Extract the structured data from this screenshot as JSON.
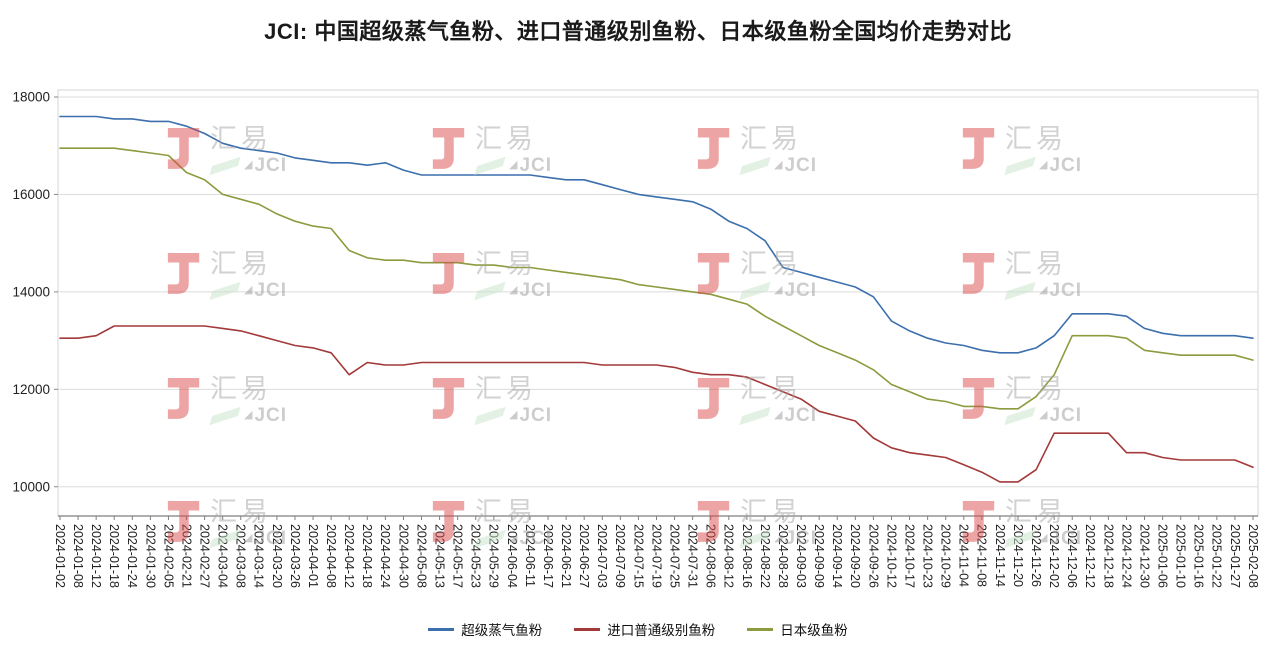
{
  "title": "JCI: 中国超级蒸气鱼粉、进口普通级别鱼粉、日本级鱼粉全国均价走势对比",
  "watermark": {
    "cn": "汇易",
    "en": "JCI",
    "logo_color": "#dd4b4b"
  },
  "chart_data": {
    "type": "line",
    "title": "JCI: 中国超级蒸气鱼粉、进口普通级别鱼粉、日本级鱼粉全国均价走势对比",
    "ylabel": "",
    "xlabel": "",
    "ylim": [
      9400,
      18000
    ],
    "yticks": [
      10000,
      12000,
      14000,
      16000,
      18000
    ],
    "grid": true,
    "legend_position": "bottom",
    "categories": [
      "2024-01-02",
      "2024-01-08",
      "2024-01-12",
      "2024-01-18",
      "2024-01-24",
      "2024-01-30",
      "2024-02-05",
      "2024-02-21",
      "2024-02-27",
      "2024-03-04",
      "2024-03-08",
      "2024-03-14",
      "2024-03-20",
      "2024-03-26",
      "2024-04-01",
      "2024-04-08",
      "2024-04-12",
      "2024-04-18",
      "2024-04-24",
      "2024-04-30",
      "2024-05-08",
      "2024-05-13",
      "2024-05-17",
      "2024-05-23",
      "2024-05-29",
      "2024-06-04",
      "2024-06-11",
      "2024-06-17",
      "2024-06-21",
      "2024-06-27",
      "2024-07-03",
      "2024-07-09",
      "2024-07-15",
      "2024-07-19",
      "2024-07-25",
      "2024-07-31",
      "2024-08-06",
      "2024-08-12",
      "2024-08-16",
      "2024-08-22",
      "2024-08-28",
      "2024-09-03",
      "2024-09-09",
      "2024-09-14",
      "2024-09-20",
      "2024-09-26",
      "2024-10-12",
      "2024-10-17",
      "2024-10-23",
      "2024-10-29",
      "2024-11-04",
      "2024-11-08",
      "2024-11-14",
      "2024-11-20",
      "2024-11-26",
      "2024-12-02",
      "2024-12-06",
      "2024-12-12",
      "2024-12-18",
      "2024-12-24",
      "2024-12-30",
      "2025-01-06",
      "2025-01-10",
      "2025-01-16",
      "2025-01-22",
      "2025-01-27",
      "2025-02-08"
    ],
    "series": [
      {
        "name": "超级蒸气鱼粉",
        "color": "#3c6fad",
        "values": [
          17600,
          17600,
          17600,
          17550,
          17550,
          17500,
          17500,
          17400,
          17250,
          17050,
          16950,
          16900,
          16850,
          16750,
          16700,
          16650,
          16650,
          16600,
          16650,
          16500,
          16400,
          16400,
          16400,
          16400,
          16400,
          16400,
          16400,
          16350,
          16300,
          16300,
          16200,
          16100,
          16000,
          15950,
          15900,
          15850,
          15700,
          15450,
          15300,
          15050,
          14500,
          14400,
          14300,
          14200,
          14100,
          13900,
          13400,
          13200,
          13050,
          12950,
          12900,
          12800,
          12750,
          12750,
          12850,
          13100,
          13550,
          13550,
          13550,
          13500,
          13250,
          13150,
          13100,
          13100,
          13100,
          13100,
          13050
        ]
      },
      {
        "name": "进口普通级别鱼粉",
        "color": "#a33939",
        "values": [
          13050,
          13050,
          13100,
          13300,
          13300,
          13300,
          13300,
          13300,
          13300,
          13250,
          13200,
          13100,
          13000,
          12900,
          12850,
          12750,
          12300,
          12550,
          12500,
          12500,
          12550,
          12550,
          12550,
          12550,
          12550,
          12550,
          12550,
          12550,
          12550,
          12550,
          12500,
          12500,
          12500,
          12500,
          12450,
          12350,
          12300,
          12300,
          12250,
          12100,
          11950,
          11800,
          11550,
          11450,
          11350,
          11000,
          10800,
          10700,
          10650,
          10600,
          10450,
          10300,
          10100,
          10100,
          10350,
          11100,
          11100,
          11100,
          11100,
          10700,
          10700,
          10600,
          10550,
          10550,
          10550,
          10550,
          10400
        ]
      },
      {
        "name": "日本级鱼粉",
        "color": "#8c9b3e",
        "values": [
          16950,
          16950,
          16950,
          16950,
          16900,
          16850,
          16800,
          16450,
          16300,
          16000,
          15900,
          15800,
          15600,
          15450,
          15350,
          15300,
          14850,
          14700,
          14650,
          14650,
          14600,
          14600,
          14600,
          14550,
          14550,
          14500,
          14500,
          14450,
          14400,
          14350,
          14300,
          14250,
          14150,
          14100,
          14050,
          14000,
          13950,
          13850,
          13750,
          13500,
          13300,
          13100,
          12900,
          12750,
          12600,
          12400,
          12100,
          11950,
          11800,
          11750,
          11650,
          11650,
          11600,
          11600,
          11850,
          12300,
          13100,
          13100,
          13100,
          13050,
          12800,
          12750,
          12700,
          12700,
          12700,
          12700,
          12600
        ]
      }
    ]
  }
}
